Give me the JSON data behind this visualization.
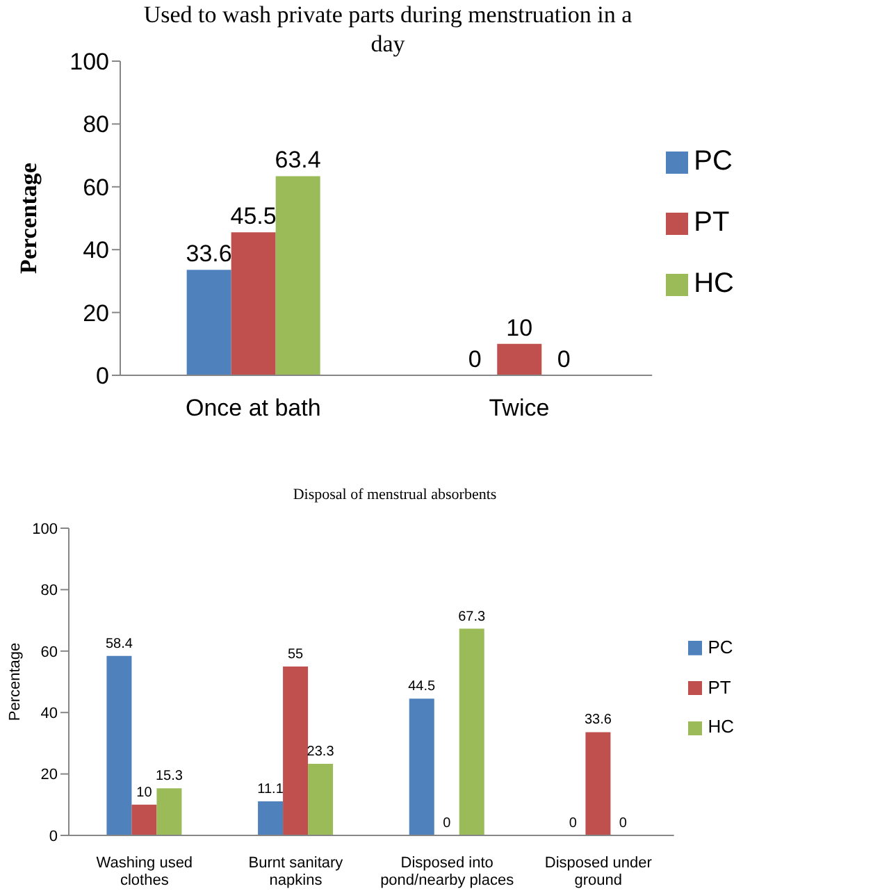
{
  "chart_data": [
    {
      "type": "bar",
      "title": "Used to wash private parts during menstruation in a day",
      "ylabel": "Percentage",
      "categories": [
        "Once at bath",
        "Twice"
      ],
      "series": [
        {
          "name": "PC",
          "color": "#4f81bd",
          "values": [
            33.6,
            0
          ]
        },
        {
          "name": "PT",
          "color": "#c0504d",
          "values": [
            45.5,
            10
          ]
        },
        {
          "name": "HC",
          "color": "#9bbb59",
          "values": [
            63.4,
            0
          ]
        }
      ],
      "ylim": [
        0,
        100
      ],
      "yticks": [
        0,
        20,
        40,
        60,
        80,
        100
      ],
      "grid": false,
      "legend": "right",
      "data_labels": true
    },
    {
      "type": "bar",
      "title": "Disposal of menstrual absorbents",
      "ylabel": "Percentage",
      "categories": [
        "Washing used clothes",
        "Burnt sanitary napkins",
        "Disposed into pond/nearby places",
        "Disposed under ground"
      ],
      "series": [
        {
          "name": "PC",
          "color": "#4f81bd",
          "values": [
            58.4,
            11.1,
            44.5,
            0
          ]
        },
        {
          "name": "PT",
          "color": "#c0504d",
          "values": [
            10,
            55,
            0,
            33.6
          ]
        },
        {
          "name": "HC",
          "color": "#9bbb59",
          "values": [
            15.3,
            23.3,
            67.3,
            0
          ]
        }
      ],
      "ylim": [
        0,
        100
      ],
      "yticks": [
        0,
        20,
        40,
        60,
        80,
        100
      ],
      "grid": false,
      "legend": "right",
      "data_labels": true
    }
  ]
}
